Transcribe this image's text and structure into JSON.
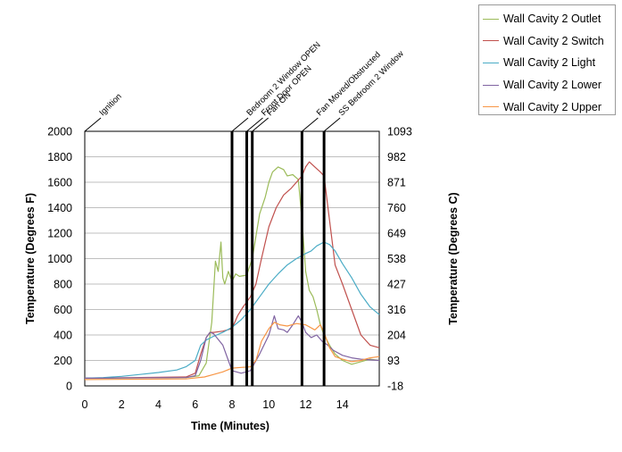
{
  "chart_data": {
    "type": "line",
    "title": "",
    "xlabel": "Time (Minutes)",
    "ylabel": "Temperature (Degrees F)",
    "y2label": "Temperature (Degrees C)",
    "xlim": [
      0,
      16
    ],
    "ylim": [
      0,
      2000
    ],
    "xticks": [
      "0",
      "2",
      "4",
      "6",
      "8",
      "10",
      "12",
      "14"
    ],
    "yticks": [
      "0",
      "200",
      "400",
      "600",
      "800",
      "1000",
      "1200",
      "1400",
      "1600",
      "1800",
      "2000"
    ],
    "y2ticks": [
      "-18",
      "93",
      "204",
      "316",
      "427",
      "538",
      "649",
      "760",
      "871",
      "982",
      "1093"
    ],
    "grid": true,
    "legend_position": "top-right",
    "events": [
      {
        "label": "Ignition",
        "x": 0
      },
      {
        "label": "Bedroom 2 Window OPEN",
        "x": 8.0
      },
      {
        "label": "Front Door OPEN",
        "x": 8.8
      },
      {
        "label": "Fan ON",
        "x": 9.1
      },
      {
        "label": "Fan Moved/Obstructed",
        "x": 11.8
      },
      {
        "label": "SS Bedroom 2 Window",
        "x": 13.0
      }
    ],
    "series": [
      {
        "name": "Wall Cavity 2 Outlet",
        "color": "#9bbb59",
        "x": [
          0,
          5.5,
          6.2,
          6.6,
          6.9,
          7.1,
          7.25,
          7.4,
          7.5,
          7.6,
          7.8,
          8.0,
          8.2,
          8.4,
          8.8,
          9.1,
          9.5,
          9.8,
          10.0,
          10.2,
          10.5,
          10.8,
          11.0,
          11.3,
          11.6,
          11.8,
          12.0,
          12.2,
          12.4,
          12.6,
          12.8,
          13.0,
          13.3,
          13.6,
          14.0,
          14.5,
          15.0,
          15.5,
          16.0
        ],
        "y": [
          60,
          65,
          80,
          180,
          500,
          980,
          900,
          1130,
          850,
          800,
          900,
          820,
          880,
          860,
          870,
          1000,
          1350,
          1480,
          1600,
          1680,
          1720,
          1700,
          1650,
          1660,
          1620,
          1300,
          900,
          750,
          700,
          600,
          480,
          400,
          320,
          250,
          200,
          170,
          190,
          210,
          200
        ]
      },
      {
        "name": "Wall Cavity 2 Switch",
        "color": "#c0504d",
        "x": [
          0,
          5.5,
          6.0,
          6.3,
          6.6,
          6.8,
          7.0,
          7.5,
          8.0,
          8.3,
          8.6,
          9.0,
          9.3,
          9.6,
          10.0,
          10.4,
          10.8,
          11.2,
          11.5,
          11.8,
          12.0,
          12.2,
          12.5,
          12.8,
          13.0,
          13.3,
          13.6,
          14.0,
          14.5,
          15.0,
          15.5,
          16.0
        ],
        "y": [
          60,
          70,
          100,
          250,
          380,
          420,
          420,
          430,
          450,
          550,
          620,
          700,
          800,
          1000,
          1250,
          1400,
          1500,
          1550,
          1600,
          1650,
          1720,
          1760,
          1720,
          1680,
          1650,
          1300,
          950,
          800,
          600,
          400,
          320,
          300
        ]
      },
      {
        "name": "Wall Cavity 2 Light",
        "color": "#4bacc6",
        "x": [
          0,
          1,
          2,
          3,
          4,
          5,
          5.5,
          6.0,
          6.3,
          6.6,
          7.0,
          7.5,
          8.0,
          8.5,
          9.0,
          9.5,
          10.0,
          10.5,
          11.0,
          11.5,
          12.0,
          12.3,
          12.6,
          13.0,
          13.3,
          13.6,
          14.0,
          14.5,
          15.0,
          15.5,
          16.0
        ],
        "y": [
          60,
          65,
          75,
          90,
          105,
          125,
          150,
          200,
          320,
          360,
          390,
          420,
          460,
          520,
          600,
          700,
          800,
          880,
          950,
          1000,
          1040,
          1060,
          1100,
          1130,
          1110,
          1060,
          960,
          850,
          720,
          620,
          560
        ]
      },
      {
        "name": "Wall Cavity 2 Lower",
        "color": "#8064a2",
        "x": [
          0,
          5.5,
          6.0,
          6.3,
          6.6,
          6.8,
          7.0,
          7.5,
          8.0,
          8.5,
          9.0,
          9.5,
          10.0,
          10.3,
          10.5,
          10.8,
          11.0,
          11.3,
          11.6,
          11.8,
          12.0,
          12.3,
          12.6,
          12.9,
          13.2,
          13.5,
          14.0,
          14.5,
          15.0,
          16.0
        ],
        "y": [
          60,
          65,
          80,
          200,
          380,
          420,
          410,
          320,
          120,
          100,
          120,
          250,
          400,
          550,
          450,
          440,
          420,
          480,
          550,
          500,
          420,
          380,
          400,
          350,
          320,
          280,
          240,
          220,
          210,
          200
        ]
      },
      {
        "name": "Wall Cavity 2 Upper",
        "color": "#f79646",
        "x": [
          0,
          5.5,
          6.5,
          7.0,
          7.5,
          8.0,
          8.5,
          9.0,
          9.3,
          9.6,
          10.0,
          10.3,
          10.6,
          11.0,
          11.5,
          12.0,
          12.5,
          12.8,
          13.0,
          13.3,
          13.6,
          14.0,
          14.5,
          15.0,
          15.5,
          16.0
        ],
        "y": [
          50,
          55,
          70,
          90,
          110,
          140,
          145,
          150,
          200,
          350,
          450,
          500,
          480,
          470,
          490,
          480,
          440,
          480,
          420,
          300,
          230,
          210,
          190,
          200,
          220,
          230
        ]
      }
    ]
  }
}
